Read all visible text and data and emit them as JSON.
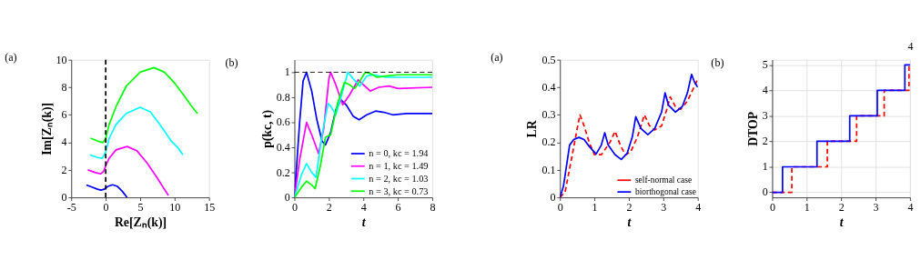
{
  "chart_data": [
    {
      "type": "line",
      "title": "(a)",
      "xlabel": "Re[Zₙ(k)]",
      "ylabel": "Im[Zₙ(k)]",
      "xlim": [
        -5,
        15
      ],
      "ylim": [
        0,
        10
      ],
      "xticks": [
        -5,
        0,
        5,
        10,
        15
      ],
      "yticks": [
        0,
        2,
        4,
        6,
        8,
        10
      ],
      "grid": false,
      "ref_lines": [
        {
          "axis": "x",
          "value": 0,
          "color": "#000000",
          "line_style": "dashed"
        }
      ],
      "series": [
        {
          "color": "#0000ff",
          "line_style": "solid",
          "x": [
            -2.8,
            -2,
            -1.2,
            -0.7,
            -0.2,
            0.3,
            1,
            1.7,
            2.4,
            3.1
          ],
          "values": [
            0.9,
            0.75,
            0.6,
            0.53,
            0.6,
            0.8,
            0.92,
            0.8,
            0.45,
            0
          ]
        },
        {
          "color": "#ff00ff",
          "line_style": "solid",
          "x": [
            -2.6,
            -1.5,
            -0.7,
            -0.3,
            0,
            0.5,
            1.5,
            3.1,
            4.5,
            6,
            7.5,
            8.5,
            9.1
          ],
          "values": [
            2.0,
            1.8,
            1.72,
            1.9,
            2.3,
            2.85,
            3.45,
            3.7,
            3.4,
            2.5,
            1.4,
            0.6,
            0.15
          ]
        },
        {
          "color": "#00ffff",
          "line_style": "solid",
          "x": [
            -2.3,
            -1.2,
            -0.5,
            0,
            0.5,
            1.5,
            3,
            5,
            6.5,
            8,
            9.5,
            10.5,
            11.2
          ],
          "values": [
            3.1,
            2.9,
            2.84,
            3.3,
            4.3,
            5.3,
            6.1,
            6.55,
            6.2,
            5.2,
            4.1,
            3.6,
            3.1
          ]
        },
        {
          "color": "#00ff00",
          "line_style": "solid",
          "x": [
            -2.2,
            -1.2,
            -0.4,
            0,
            0.5,
            1.5,
            3,
            5,
            7,
            8.5,
            10,
            11.5,
            12.5,
            13.3
          ],
          "values": [
            4.3,
            4.1,
            3.98,
            4.3,
            5.3,
            6.6,
            8.1,
            9.1,
            9.43,
            9.1,
            8.3,
            7.3,
            6.6,
            6.1
          ]
        }
      ]
    },
    {
      "type": "line",
      "title": "(b)",
      "xlabel": "t",
      "ylabel": "p(kc, t)",
      "xlim": [
        0,
        8
      ],
      "ylim": [
        0,
        1.1
      ],
      "xticks": [
        0,
        2,
        4,
        6,
        8
      ],
      "yticks": [
        0,
        0.2,
        0.4,
        0.6,
        0.8,
        1
      ],
      "grid": false,
      "legend": "bottom right",
      "ref_lines": [
        {
          "axis": "y",
          "value": 1,
          "color": "#000000",
          "line_style": "dashed"
        }
      ],
      "series": [
        {
          "name": "n = 0,  kc = 1.94",
          "color": "#0000ff",
          "x": [
            0,
            0.3,
            0.5,
            0.7,
            1.0,
            1.3,
            1.6,
            1.8,
            2.1,
            2.4,
            2.7,
            3.0,
            3.4,
            3.75,
            4.2,
            4.7,
            5.2,
            5.7,
            6.5,
            8
          ],
          "values": [
            0,
            0.6,
            0.93,
            1.0,
            0.85,
            0.62,
            0.45,
            0.42,
            0.52,
            0.7,
            0.78,
            0.74,
            0.65,
            0.62,
            0.66,
            0.69,
            0.68,
            0.66,
            0.67,
            0.67
          ]
        },
        {
          "name": "n = 1,  kc = 1.49",
          "color": "#ff00ff",
          "x": [
            0,
            0.3,
            0.7,
            1.0,
            1.4,
            1.7,
            2.0,
            2.1,
            2.4,
            2.8,
            3.2,
            3.7,
            4.0,
            4.4,
            4.9,
            5.5,
            6.0,
            8
          ],
          "values": [
            0,
            0.3,
            0.6,
            0.5,
            0.35,
            0.55,
            0.95,
            1.0,
            0.9,
            0.74,
            0.82,
            0.94,
            0.9,
            0.85,
            0.88,
            0.89,
            0.87,
            0.88
          ]
        },
        {
          "name": "n = 2,  kc = 1.03",
          "color": "#00ffff",
          "x": [
            0,
            0.4,
            0.7,
            1.0,
            1.25,
            1.6,
            1.95,
            2.1,
            2.4,
            2.7,
            3.1,
            3.4,
            3.8,
            4.2,
            4.6,
            5.3,
            6,
            8
          ],
          "values": [
            0,
            0.18,
            0.27,
            0.2,
            0.16,
            0.5,
            0.75,
            0.73,
            0.66,
            0.8,
            1.0,
            0.95,
            0.89,
            0.97,
            0.98,
            0.96,
            0.96,
            0.96
          ]
        },
        {
          "name": "n = 3,  kc = 0.73",
          "color": "#00ff00",
          "x": [
            0,
            0.4,
            0.7,
            1.0,
            1.2,
            1.5,
            1.8,
            2.1,
            2.5,
            2.9,
            3.2,
            3.5,
            3.8,
            4.1,
            4.4,
            4.8,
            5.3,
            6,
            8
          ],
          "values": [
            0,
            0.08,
            0.13,
            0.1,
            0.07,
            0.25,
            0.48,
            0.5,
            0.75,
            0.92,
            0.9,
            0.87,
            0.93,
            1.0,
            0.99,
            0.96,
            0.97,
            0.98,
            0.98
          ]
        }
      ]
    },
    {
      "type": "line",
      "title": "(a)",
      "xlabel": "t",
      "ylabel": "LR",
      "xlim": [
        0,
        4
      ],
      "ylim": [
        0,
        0.5
      ],
      "xticks": [
        0,
        1,
        2,
        3,
        4
      ],
      "yticks": [
        0,
        0.1,
        0.2,
        0.3,
        0.4,
        0.5
      ],
      "grid": false,
      "legend": "bottom right",
      "annotations": [
        "4"
      ],
      "series": [
        {
          "name": "self-normal case",
          "color": "#ff0000",
          "line_style": "dashed",
          "x": [
            0,
            0.15,
            0.35,
            0.5,
            0.58,
            0.7,
            0.85,
            1.0,
            1.2,
            1.45,
            1.6,
            1.75,
            1.9,
            2.05,
            2.25,
            2.45,
            2.6,
            2.75,
            2.95,
            3.1,
            3.2,
            3.35,
            3.5,
            3.7,
            3.85,
            4
          ],
          "values": [
            0,
            0.02,
            0.15,
            0.25,
            0.3,
            0.26,
            0.2,
            0.155,
            0.155,
            0.2,
            0.24,
            0.19,
            0.155,
            0.165,
            0.22,
            0.3,
            0.26,
            0.245,
            0.26,
            0.32,
            0.365,
            0.33,
            0.32,
            0.35,
            0.39,
            0.43
          ]
        },
        {
          "name": "biorthogonal case",
          "color": "#0000ff",
          "line_style": "solid",
          "x": [
            0,
            0.1,
            0.28,
            0.4,
            0.55,
            0.7,
            0.85,
            1.05,
            1.2,
            1.3,
            1.4,
            1.6,
            1.78,
            1.95,
            2.1,
            2.2,
            2.35,
            2.55,
            2.75,
            2.95,
            3.05,
            3.15,
            3.35,
            3.55,
            3.7,
            3.82,
            3.9,
            4
          ],
          "values": [
            0,
            0.04,
            0.19,
            0.21,
            0.218,
            0.21,
            0.185,
            0.158,
            0.19,
            0.235,
            0.19,
            0.155,
            0.138,
            0.16,
            0.22,
            0.293,
            0.25,
            0.228,
            0.25,
            0.31,
            0.38,
            0.335,
            0.31,
            0.33,
            0.38,
            0.447,
            0.42,
            0.4
          ]
        }
      ]
    },
    {
      "type": "step",
      "title": "(b)",
      "xlabel": "t",
      "ylabel": "DTOP",
      "xlim": [
        0,
        4
      ],
      "ylim": [
        -0.2,
        5.2
      ],
      "xticks": [
        0,
        1,
        2,
        3,
        4
      ],
      "yticks": [
        0,
        1,
        2,
        3,
        4,
        5
      ],
      "grid": true,
      "series": [
        {
          "color": "#ff0000",
          "line_style": "dashed",
          "x": [
            0,
            0.57,
            1.6,
            2.45,
            3.25,
            3.97,
            4
          ],
          "values": [
            0,
            1,
            2,
            3,
            4,
            5,
            5
          ]
        },
        {
          "color": "#0000ff",
          "line_style": "solid",
          "x": [
            0,
            0.3,
            1.3,
            2.25,
            3.05,
            3.85,
            4
          ],
          "values": [
            0,
            1,
            2,
            3,
            4,
            5,
            5
          ]
        }
      ]
    }
  ]
}
